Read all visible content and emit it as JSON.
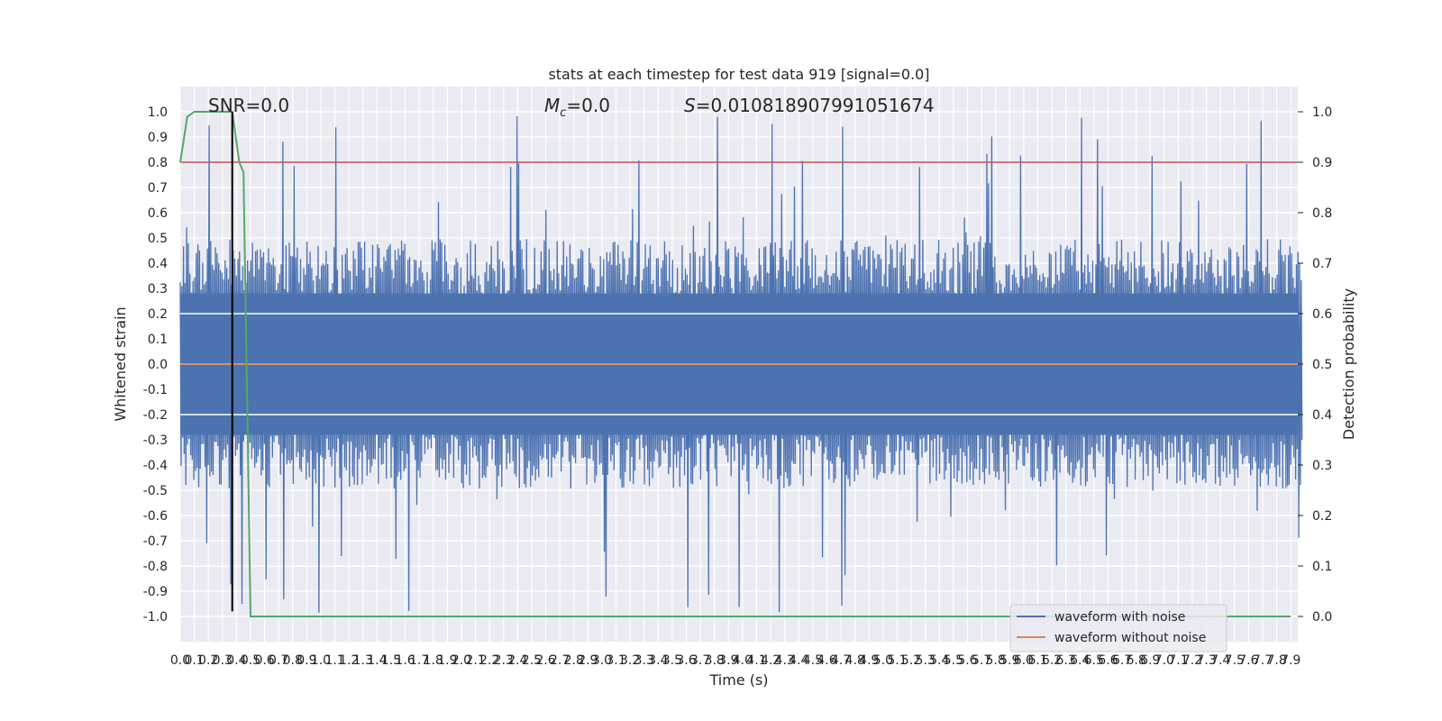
{
  "chart_data": {
    "type": "line",
    "title": "stats at each timestep for test data 919 [signal=0.0]",
    "xlabel": "Time (s)",
    "ylabel": "Whitened strain",
    "y2label": "Detection probability",
    "xlim": [
      0.0,
      7.95
    ],
    "ylim": [
      -1.1,
      1.1
    ],
    "y2lim": [
      -0.05,
      1.05
    ],
    "x_tick_step": 0.1,
    "x_tick_count": 80,
    "y_ticks": [
      -1.0,
      -0.9,
      -0.8,
      -0.7,
      -0.6,
      -0.5,
      -0.4,
      -0.3,
      -0.2,
      -0.1,
      0.0,
      0.1,
      0.2,
      0.3,
      0.4,
      0.5,
      0.6,
      0.7,
      0.8,
      0.9,
      1.0
    ],
    "y2_ticks": [
      0.0,
      0.1,
      0.2,
      0.3,
      0.4,
      0.5,
      0.6,
      0.7,
      0.8,
      0.9,
      1.0
    ],
    "grid": true,
    "legend_placement": "lower-right",
    "annotations": {
      "snr": "SNR=0.0",
      "mc_symbol": "M",
      "mc_sub": "c",
      "mc_value": "=0.0",
      "s_symbol": "S",
      "s_value": "=0.010818907991051674"
    },
    "series": [
      {
        "name": "waveform with noise",
        "color": "#4c72b0",
        "axis": "left",
        "noise_envelope": {
          "typical_abs": 0.45,
          "max_abs": 1.0
        }
      },
      {
        "name": "waveform without noise",
        "color": "#dd8452",
        "axis": "left",
        "constant": 0.0
      },
      {
        "axis": "right",
        "color": "#55a868",
        "x": [
          0.0,
          0.05,
          0.1,
          0.2,
          0.37,
          0.42,
          0.45,
          0.5,
          7.9
        ],
        "y": [
          0.9,
          0.99,
          1.0,
          1.0,
          1.0,
          0.9,
          0.88,
          0.0,
          0.0
        ]
      }
    ],
    "threshold": {
      "axis": "right",
      "value": 0.9,
      "color": "#c44e52"
    },
    "marker": {
      "x": 0.37,
      "y_from": -0.98,
      "y_to": 1.0,
      "color": "#000000"
    }
  },
  "colors": {
    "axes_background": "#eaeaf2",
    "grid": "#ffffff",
    "text": "#262626"
  }
}
